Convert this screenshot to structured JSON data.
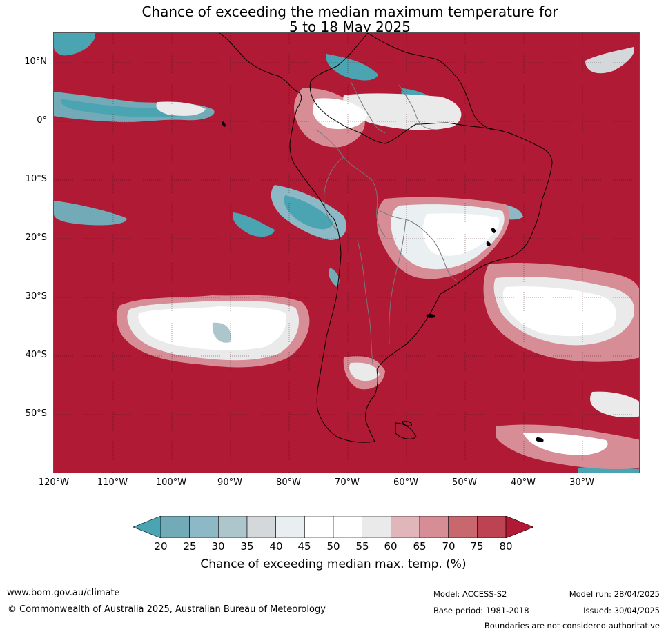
{
  "title_line1": "Chance of exceeding the median maximum temperature for",
  "title_line2": "5 to 18 May 2025",
  "map": {
    "lat_labels": [
      "10°N",
      "0°",
      "10°S",
      "20°S",
      "30°S",
      "40°S",
      "50°S"
    ],
    "lon_labels": [
      "120°W",
      "110°W",
      "100°W",
      "90°W",
      "80°W",
      "70°W",
      "60°W",
      "50°W",
      "40°W",
      "30°W"
    ],
    "ocean_color": "#b01a34"
  },
  "colorbar": {
    "ticks": [
      "20",
      "25",
      "30",
      "35",
      "40",
      "45",
      "50",
      "55",
      "60",
      "65",
      "70",
      "75",
      "80"
    ],
    "colors": [
      "#4aa4b2",
      "#72abb7",
      "#8db8c5",
      "#adc6cc",
      "#d4d8db",
      "#e9eff1",
      "#ffffff",
      "#ffffff",
      "#eaeaeb",
      "#e0b6bb",
      "#d78d96",
      "#c8676e",
      "#bd4352",
      "#b01a34"
    ],
    "label": "Chance of exceeding median max. temp. (%)"
  },
  "footer": {
    "website": "www.bom.gov.au/climate",
    "copyright": "© Commonwealth of Australia 2025, Australian Bureau of Meteorology",
    "model": "Model: ACCESS-S2",
    "base_period": "Base period: 1981-2018",
    "model_run": "Model run: 28/04/2025",
    "issued": "Issued: 30/04/2025",
    "boundaries": "Boundaries are not considered authoritative"
  }
}
